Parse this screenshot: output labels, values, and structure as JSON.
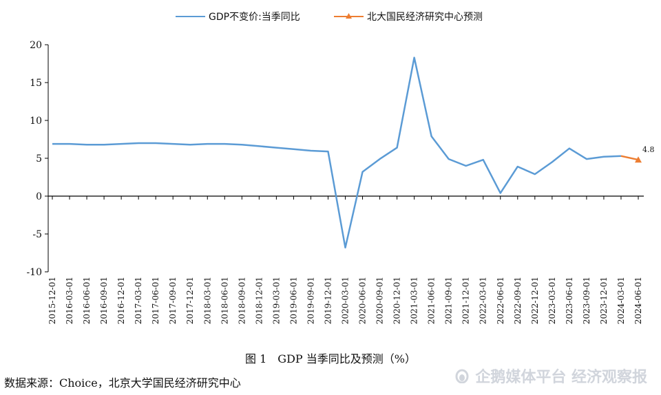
{
  "caption": "图 1　GDP 当季同比及预测（%）",
  "source": "数据来源：Choice，北京大学国民经济研究中心",
  "watermark": {
    "text": "企鹅媒体平台 经济观察报",
    "icon": "penguin-platform-icon"
  },
  "chart_data": {
    "type": "line",
    "title": "",
    "xlabel": "",
    "ylabel": "",
    "ylim": [
      -10,
      20
    ],
    "yticks": [
      -10,
      -5,
      0,
      5,
      10,
      15,
      20
    ],
    "grid": false,
    "legend_placement": "top",
    "categories": [
      "2015-12-01",
      "2016-03-01",
      "2016-06-01",
      "2016-09-01",
      "2016-12-01",
      "2017-03-01",
      "2017-06-01",
      "2017-09-01",
      "2017-12-01",
      "2018-03-01",
      "2018-06-01",
      "2018-09-01",
      "2018-12-01",
      "2019-03-01",
      "2019-06-01",
      "2019-09-01",
      "2019-12-01",
      "2020-03-01",
      "2020-06-01",
      "2020-09-01",
      "2020-12-01",
      "2021-03-01",
      "2021-06-01",
      "2021-09-01",
      "2021-12-01",
      "2022-03-01",
      "2022-06-01",
      "2022-09-01",
      "2022-12-01",
      "2023-03-01",
      "2023-06-01",
      "2023-09-01",
      "2023-12-01",
      "2024-03-01",
      "2024-06-01"
    ],
    "series": [
      {
        "name": "GDP不变价:当季同比",
        "color": "#5b9bd5",
        "marker": "none",
        "values": [
          6.9,
          6.9,
          6.8,
          6.8,
          6.9,
          7.0,
          7.0,
          6.9,
          6.8,
          6.9,
          6.9,
          6.8,
          6.6,
          6.4,
          6.2,
          6.0,
          5.9,
          -6.8,
          3.2,
          4.9,
          6.4,
          18.3,
          7.9,
          4.9,
          4.0,
          4.8,
          0.4,
          3.9,
          2.9,
          4.5,
          6.3,
          4.9,
          5.2,
          5.3,
          null
        ]
      },
      {
        "name": "北大国民经济研究中心预测",
        "color": "#ed7d31",
        "marker": "triangle",
        "values": [
          null,
          null,
          null,
          null,
          null,
          null,
          null,
          null,
          null,
          null,
          null,
          null,
          null,
          null,
          null,
          null,
          null,
          null,
          null,
          null,
          null,
          null,
          null,
          null,
          null,
          null,
          null,
          null,
          null,
          null,
          null,
          null,
          null,
          5.3,
          4.8
        ],
        "data_labels": [
          {
            "category": "2024-06-01",
            "text": "4.8"
          }
        ]
      }
    ]
  }
}
